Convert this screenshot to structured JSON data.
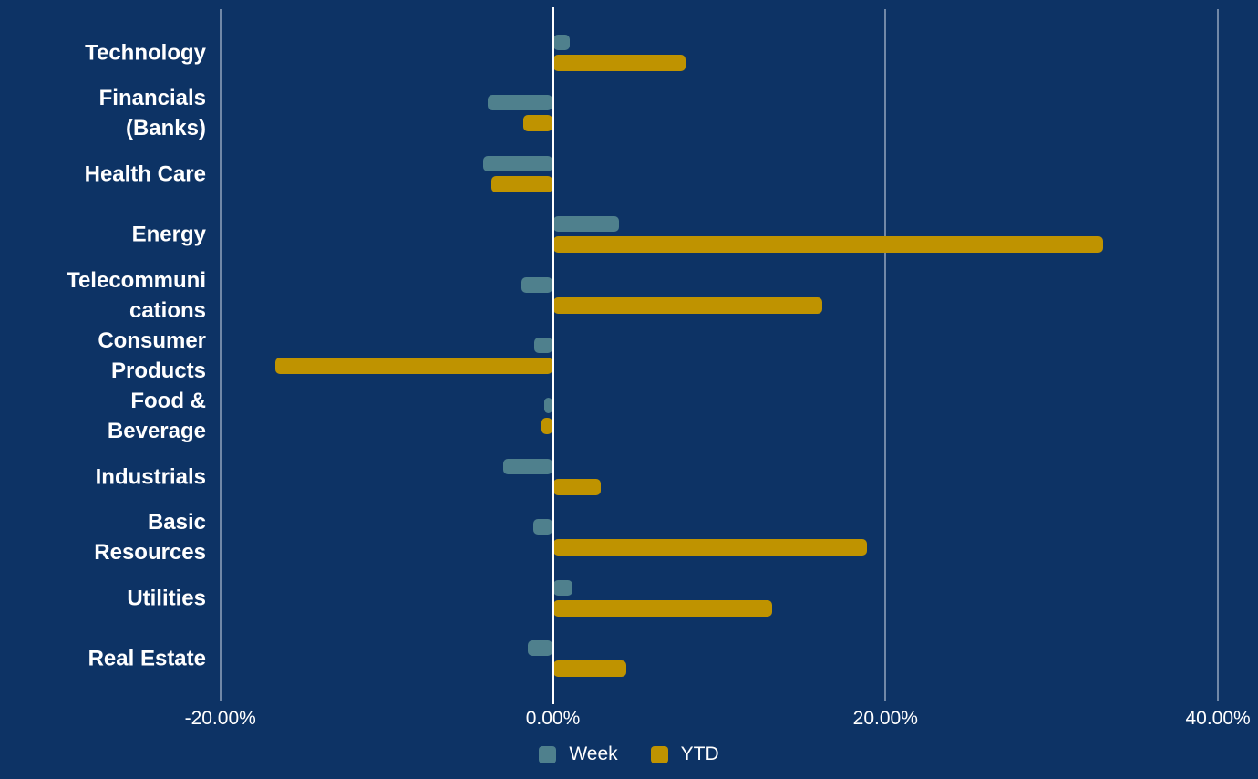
{
  "chart_data": {
    "type": "bar",
    "orientation": "horizontal",
    "title": "",
    "categories": [
      "Technology",
      "Financials (Banks)",
      "Health Care",
      "Energy",
      "Telecommunications",
      "Consumer Products",
      "Food & Beverage",
      "Industrials",
      "Basic Resources",
      "Utilities",
      "Real Estate"
    ],
    "category_labels_wrapped": [
      "Technology",
      "Financials\n(Banks)",
      "Health Care",
      "Energy",
      "Telecommuni\ncations",
      "Consumer\nProducts",
      "Food &\nBeverage",
      "Industrials",
      "Basic\nResources",
      "Utilities",
      "Real Estate"
    ],
    "series": [
      {
        "name": "Week",
        "color": "#4F808D",
        "values": [
          1.0,
          -3.9,
          -4.2,
          4.0,
          -1.9,
          -1.1,
          -0.5,
          -3.0,
          -1.2,
          1.2,
          -1.5
        ]
      },
      {
        "name": "YTD",
        "color": "#BF9300",
        "values": [
          8.0,
          -1.8,
          -3.7,
          33.1,
          16.2,
          -16.7,
          -0.7,
          2.9,
          18.9,
          13.2,
          4.4
        ]
      }
    ],
    "x_ticks": [
      {
        "value": -20,
        "label": "-20.00%"
      },
      {
        "value": 0,
        "label": "0.00%"
      },
      {
        "value": 20,
        "label": "20.00%"
      },
      {
        "value": 40,
        "label": "40.00%"
      }
    ],
    "xlim": [
      -33.3,
      42.4
    ],
    "value_unit": "percent",
    "grid": true,
    "legend_position": "bottom-center",
    "colors": {
      "background": "#0D3365",
      "grid_line": "rgba(235, 240, 248, 0.45)",
      "zero_line": "#FFFFFF",
      "text": "#FFFFFF"
    }
  }
}
